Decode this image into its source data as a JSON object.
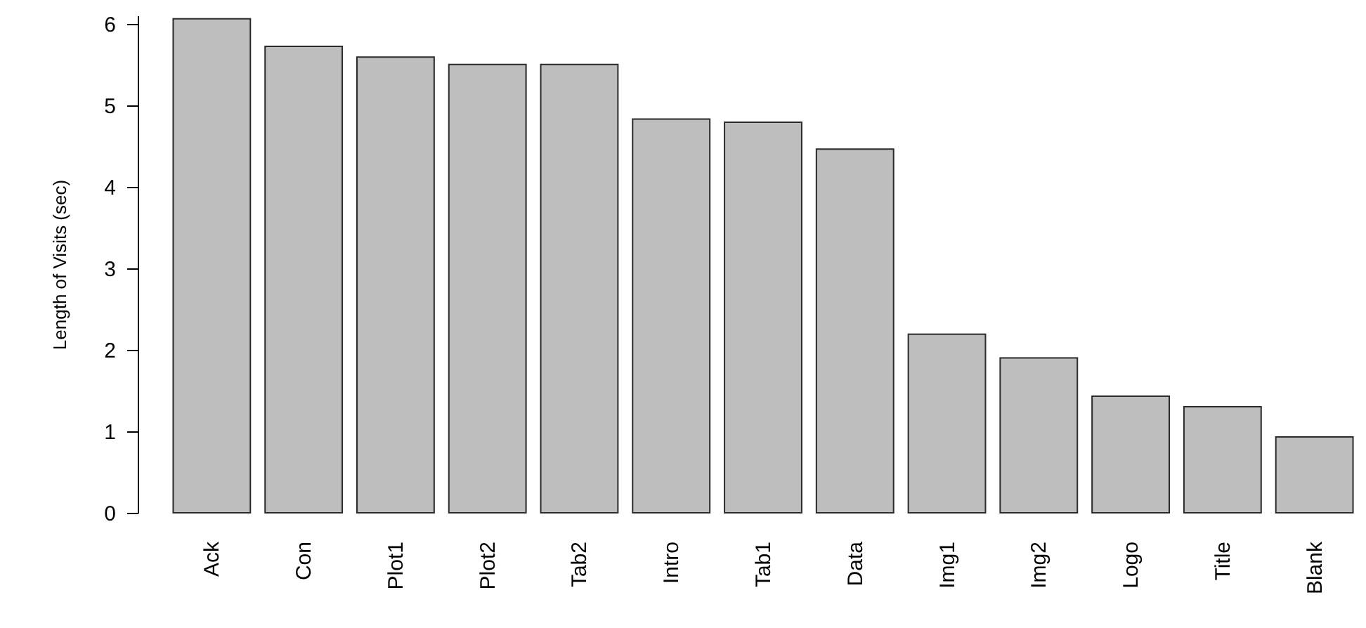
{
  "chart_data": {
    "type": "bar",
    "ylabel": "Length of Visits (sec)",
    "categories": [
      "Ack",
      "Con",
      "Plot1",
      "Plot2",
      "Tab2",
      "Intro",
      "Tab1",
      "Data",
      "Img1",
      "Img2",
      "Logo",
      "Title",
      "Blank"
    ],
    "values": [
      6.06,
      5.72,
      5.59,
      5.5,
      5.5,
      4.83,
      4.79,
      4.46,
      2.19,
      1.9,
      1.43,
      1.3,
      0.93
    ],
    "color": "#bebebe",
    "ylim": [
      0,
      6.1
    ],
    "yticks": [
      0,
      1,
      2,
      3,
      4,
      5,
      6
    ],
    "grid": false
  }
}
